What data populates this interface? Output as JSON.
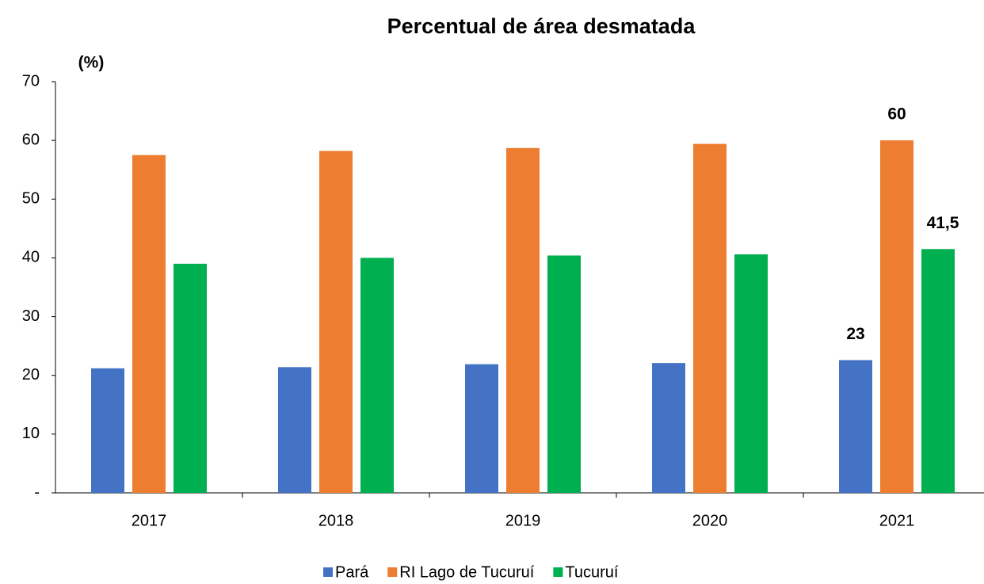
{
  "chart_data": {
    "type": "bar",
    "title": "Percentual de área desmatada",
    "y_label": "(%)",
    "categories": [
      "2017",
      "2018",
      "2019",
      "2020",
      "2021"
    ],
    "series": [
      {
        "name": "Pará",
        "color": "#4472c4",
        "values": [
          21.2,
          21.4,
          21.9,
          22.1,
          22.6
        ],
        "value_labels": [
          null,
          null,
          null,
          null,
          "23"
        ]
      },
      {
        "name": "RI Lago de Tucuruí",
        "color": "#ed7d31",
        "values": [
          57.5,
          58.2,
          58.7,
          59.4,
          60
        ],
        "value_labels": [
          null,
          null,
          null,
          null,
          "60"
        ]
      },
      {
        "name": "Tucuruí",
        "color": "#00b050",
        "values": [
          39,
          40,
          40.4,
          40.6,
          41.5
        ],
        "value_labels": [
          null,
          null,
          null,
          null,
          "41,5"
        ]
      }
    ],
    "ylim": [
      0,
      70
    ],
    "yticks": [
      {
        "value": 0,
        "label": "-"
      },
      10,
      20,
      30,
      40,
      50,
      60,
      70
    ],
    "legend": "bottom"
  }
}
